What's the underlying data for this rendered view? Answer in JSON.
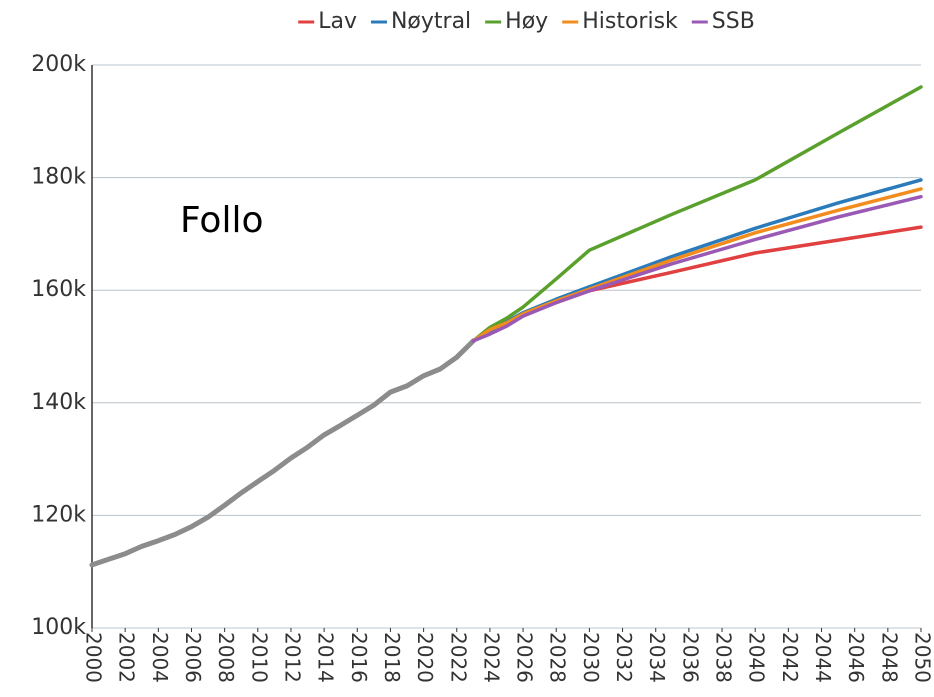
{
  "chart_data": {
    "type": "line",
    "annotation": "Follo",
    "xlim": [
      2000,
      2050
    ],
    "xticks": [
      2000,
      2002,
      2004,
      2006,
      2008,
      2010,
      2012,
      2014,
      2016,
      2018,
      2020,
      2022,
      2024,
      2026,
      2028,
      2030,
      2032,
      2034,
      2036,
      2038,
      2040,
      2042,
      2044,
      2046,
      2048,
      2050
    ],
    "ylim": [
      100,
      200
    ],
    "yticks": [
      {
        "value": 100,
        "label": "100k"
      },
      {
        "value": 120,
        "label": "120k"
      },
      {
        "value": 140,
        "label": "140k"
      },
      {
        "value": 160,
        "label": "160k"
      },
      {
        "value": 180,
        "label": "180k"
      },
      {
        "value": 200,
        "label": "200k"
      }
    ],
    "grid": true,
    "legend": "top",
    "history": {
      "color": "#8c8c8c",
      "x": [
        2000,
        2001,
        2002,
        2003,
        2004,
        2005,
        2006,
        2007,
        2008,
        2009,
        2010,
        2011,
        2012,
        2013,
        2014,
        2015,
        2016,
        2017,
        2018,
        2019,
        2020,
        2021,
        2022,
        2023
      ],
      "values": [
        111.2,
        112.2,
        113.2,
        114.5,
        115.5,
        116.6,
        118,
        119.7,
        121.8,
        124,
        126,
        128,
        130.2,
        132.1,
        134.3,
        136,
        137.8,
        139.6,
        141.9,
        143,
        144.8,
        146,
        148.1,
        151
      ]
    },
    "series": [
      {
        "name": "Lav",
        "color": "#e0403f",
        "x": [
          2023,
          2024,
          2025,
          2026,
          2028,
          2030,
          2035,
          2040,
          2045,
          2050
        ],
        "values": [
          151,
          153,
          154,
          155.6,
          157.8,
          159.9,
          163.2,
          166.6,
          168.9,
          171.2
        ]
      },
      {
        "name": "Nøytral",
        "color": "#2b7bba",
        "x": [
          2023,
          2024,
          2025,
          2026,
          2028,
          2030,
          2035,
          2040,
          2045,
          2050
        ],
        "values": [
          151,
          152.8,
          154.4,
          156,
          158.4,
          160.6,
          166,
          171,
          175.5,
          179.6
        ]
      },
      {
        "name": "Høy",
        "color": "#5aa02c",
        "x": [
          2023,
          2024,
          2025,
          2026,
          2028,
          2030,
          2035,
          2040,
          2045,
          2050
        ],
        "values": [
          151,
          153.4,
          155,
          157,
          162,
          167.1,
          173.5,
          179.6,
          187.9,
          196.1
        ]
      },
      {
        "name": "Historisk",
        "color": "#f28c1c",
        "x": [
          2023,
          2024,
          2025,
          2026,
          2028,
          2030,
          2035,
          2040,
          2045,
          2050
        ],
        "values": [
          151,
          153,
          154.2,
          155.8,
          158.1,
          160.2,
          165.4,
          170.2,
          174.2,
          178
        ]
      },
      {
        "name": "SSB",
        "color": "#9b59b6",
        "x": [
          2023,
          2024,
          2025,
          2026,
          2028,
          2030,
          2035,
          2040,
          2045,
          2050
        ],
        "values": [
          151,
          152.2,
          153.6,
          155.4,
          157.8,
          159.9,
          164.7,
          169,
          173,
          176.6
        ]
      }
    ]
  }
}
